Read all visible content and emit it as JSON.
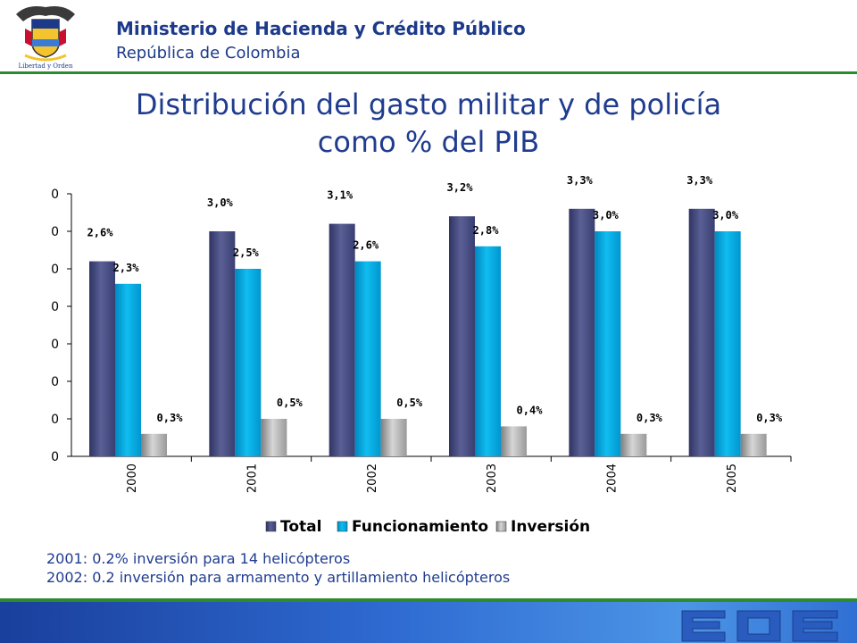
{
  "header": {
    "ministry": "Ministerio de Hacienda y Crédito Público",
    "republic": "República de Colombia",
    "motto": "Libertad y Orden"
  },
  "colors": {
    "total": "#4a4f80",
    "funcionamiento": "#00a6dc",
    "inversion": "#a8a8a8",
    "title": "#1f3c8f",
    "header_bar": "#2d8a2e",
    "footer": "#2e6ad1"
  },
  "chart_data": {
    "type": "bar",
    "title": "Distribución del gasto militar y de policía como % del PIB",
    "categories": [
      "2000",
      "2001",
      "2002",
      "2003",
      "2004",
      "2005"
    ],
    "series": [
      {
        "name": "Total",
        "values": [
          2.6,
          3.0,
          3.1,
          3.2,
          3.3,
          3.3
        ],
        "labels": [
          "2,6%",
          "3,0%",
          "3,1%",
          "3,2%",
          "3,3%",
          "3,3%"
        ]
      },
      {
        "name": "Funcionamiento",
        "values": [
          2.3,
          2.5,
          2.6,
          2.8,
          3.0,
          3.0
        ],
        "labels": [
          "2,3%",
          "2,5%",
          "2,6%",
          "2,8%",
          "3,0%",
          "3,0%"
        ]
      },
      {
        "name": "Inversión",
        "values": [
          0.3,
          0.5,
          0.5,
          0.4,
          0.3,
          0.3
        ],
        "labels": [
          "0,3%",
          "0,5%",
          "0,5%",
          "0,4%",
          "0,3%",
          "0,3%"
        ]
      }
    ],
    "y_ticks": [
      "0",
      "0",
      "0",
      "0",
      "0",
      "0",
      "0",
      "0"
    ],
    "ylim": [
      0,
      3.5
    ],
    "xlabel": "",
    "ylabel": "",
    "legend_position": "bottom",
    "grid": false
  },
  "notes": [
    "2001: 0.2% inversión para 14 helicópteros",
    "2002: 0.2 inversión para armamento y artillamiento helicópteros"
  ]
}
